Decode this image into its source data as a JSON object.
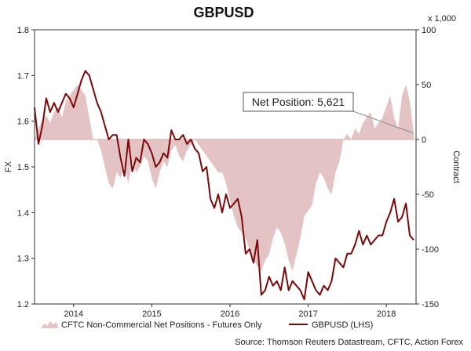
{
  "chart_data": {
    "type": "line",
    "title": "GBPUSD",
    "ylabel_left": "FX",
    "ylabel_right": "Contract",
    "right_scale_note": "x 1,000",
    "ylim_left": [
      1.2,
      1.8
    ],
    "yticks_left": [
      "1.8",
      "1.7",
      "1.6",
      "1.5",
      "1.4",
      "1.3",
      "1.2"
    ],
    "ylim_right": [
      -150,
      100
    ],
    "yticks_right": [
      "100",
      "50",
      "0",
      "-50",
      "-100",
      "-150"
    ],
    "x_tick_labels": [
      "2014",
      "2015",
      "2016",
      "2017",
      "2018"
    ],
    "x_tick_years": [
      2014,
      2015,
      2016,
      2017,
      2018
    ],
    "xlim": [
      2013.5,
      2018.38
    ],
    "grid": false,
    "legend_placement": "bottom",
    "annotation": {
      "text": "Net Position: 5,621",
      "x": 2018.35,
      "y": 5.621
    },
    "source": "Source: Thomson Reuters Datastream, CFTC, Action Forex",
    "series": [
      {
        "name": "CFTC Non-Commercial Net Positions - Futures Only",
        "axis": "right",
        "kind": "area",
        "color": "#e3c3c3",
        "x": [
          2013.5,
          2013.55,
          2013.6,
          2013.65,
          2013.7,
          2013.75,
          2013.8,
          2013.85,
          2013.9,
          2013.95,
          2014.0,
          2014.05,
          2014.1,
          2014.15,
          2014.2,
          2014.25,
          2014.3,
          2014.35,
          2014.4,
          2014.45,
          2014.5,
          2014.55,
          2014.6,
          2014.65,
          2014.7,
          2014.75,
          2014.8,
          2014.85,
          2014.9,
          2014.95,
          2015.0,
          2015.05,
          2015.1,
          2015.15,
          2015.2,
          2015.25,
          2015.3,
          2015.35,
          2015.4,
          2015.45,
          2015.5,
          2015.55,
          2015.6,
          2015.65,
          2015.7,
          2015.75,
          2015.8,
          2015.85,
          2015.9,
          2015.95,
          2016.0,
          2016.05,
          2016.1,
          2016.15,
          2016.2,
          2016.25,
          2016.3,
          2016.35,
          2016.4,
          2016.45,
          2016.5,
          2016.55,
          2016.6,
          2016.65,
          2016.7,
          2016.75,
          2016.8,
          2016.85,
          2016.9,
          2016.95,
          2017.0,
          2017.05,
          2017.1,
          2017.15,
          2017.2,
          2017.25,
          2017.3,
          2017.35,
          2017.4,
          2017.45,
          2017.5,
          2017.55,
          2017.6,
          2017.65,
          2017.7,
          2017.75,
          2017.8,
          2017.85,
          2017.9,
          2017.95,
          2018.0,
          2018.05,
          2018.1,
          2018.15,
          2018.2,
          2018.25,
          2018.3,
          2018.35
        ],
        "values": [
          0,
          10,
          18,
          22,
          15,
          25,
          30,
          20,
          35,
          40,
          45,
          50,
          45,
          40,
          20,
          0,
          0,
          -10,
          -25,
          -40,
          -45,
          -30,
          -35,
          -25,
          -40,
          -20,
          -30,
          -25,
          -15,
          -20,
          -35,
          -45,
          -30,
          -20,
          -25,
          -10,
          -5,
          -15,
          -20,
          -10,
          -5,
          0,
          -5,
          -10,
          -15,
          -20,
          -25,
          -30,
          -30,
          -40,
          -55,
          -70,
          -80,
          -85,
          -90,
          -100,
          -110,
          -115,
          -120,
          -110,
          -105,
          -90,
          -80,
          -85,
          -95,
          -110,
          -120,
          -105,
          -90,
          -70,
          -65,
          -60,
          -40,
          -30,
          -35,
          -45,
          -50,
          -30,
          -20,
          0,
          5,
          0,
          10,
          5,
          15,
          20,
          25,
          10,
          15,
          20,
          30,
          40,
          20,
          10,
          40,
          50,
          35,
          5.621
        ]
      },
      {
        "name": "GBPUSD (LHS)",
        "axis": "left",
        "kind": "line",
        "color": "#7a0a0a",
        "x": [
          2013.5,
          2013.55,
          2013.6,
          2013.65,
          2013.7,
          2013.75,
          2013.8,
          2013.85,
          2013.9,
          2013.95,
          2014.0,
          2014.05,
          2014.1,
          2014.15,
          2014.2,
          2014.25,
          2014.3,
          2014.35,
          2014.4,
          2014.45,
          2014.5,
          2014.55,
          2014.6,
          2014.65,
          2014.7,
          2014.75,
          2014.8,
          2014.85,
          2014.9,
          2014.95,
          2015.0,
          2015.05,
          2015.1,
          2015.15,
          2015.2,
          2015.25,
          2015.3,
          2015.35,
          2015.4,
          2015.45,
          2015.5,
          2015.55,
          2015.6,
          2015.65,
          2015.7,
          2015.75,
          2015.8,
          2015.85,
          2015.9,
          2015.95,
          2016.0,
          2016.05,
          2016.1,
          2016.15,
          2016.2,
          2016.25,
          2016.3,
          2016.35,
          2016.4,
          2016.45,
          2016.5,
          2016.55,
          2016.6,
          2016.65,
          2016.7,
          2016.75,
          2016.8,
          2016.85,
          2016.9,
          2016.95,
          2017.0,
          2017.05,
          2017.1,
          2017.15,
          2017.2,
          2017.25,
          2017.3,
          2017.35,
          2017.4,
          2017.45,
          2017.5,
          2017.55,
          2017.6,
          2017.65,
          2017.7,
          2017.75,
          2017.8,
          2017.85,
          2017.9,
          2017.95,
          2018.0,
          2018.05,
          2018.1,
          2018.15,
          2018.2,
          2018.25,
          2018.3,
          2018.35
        ],
        "values": [
          1.63,
          1.55,
          1.59,
          1.65,
          1.62,
          1.64,
          1.62,
          1.64,
          1.66,
          1.65,
          1.63,
          1.66,
          1.69,
          1.71,
          1.7,
          1.67,
          1.64,
          1.62,
          1.59,
          1.56,
          1.57,
          1.57,
          1.52,
          1.48,
          1.56,
          1.49,
          1.52,
          1.51,
          1.56,
          1.55,
          1.53,
          1.5,
          1.51,
          1.53,
          1.52,
          1.58,
          1.56,
          1.56,
          1.57,
          1.55,
          1.56,
          1.54,
          1.53,
          1.49,
          1.5,
          1.43,
          1.41,
          1.44,
          1.4,
          1.44,
          1.41,
          1.42,
          1.43,
          1.39,
          1.31,
          1.32,
          1.29,
          1.34,
          1.22,
          1.23,
          1.26,
          1.24,
          1.25,
          1.23,
          1.28,
          1.23,
          1.25,
          1.24,
          1.23,
          1.21,
          1.27,
          1.25,
          1.23,
          1.22,
          1.24,
          1.23,
          1.25,
          1.3,
          1.29,
          1.28,
          1.31,
          1.31,
          1.33,
          1.36,
          1.33,
          1.35,
          1.33,
          1.34,
          1.35,
          1.35,
          1.38,
          1.4,
          1.43,
          1.38,
          1.39,
          1.42,
          1.35,
          1.34
        ]
      }
    ]
  }
}
